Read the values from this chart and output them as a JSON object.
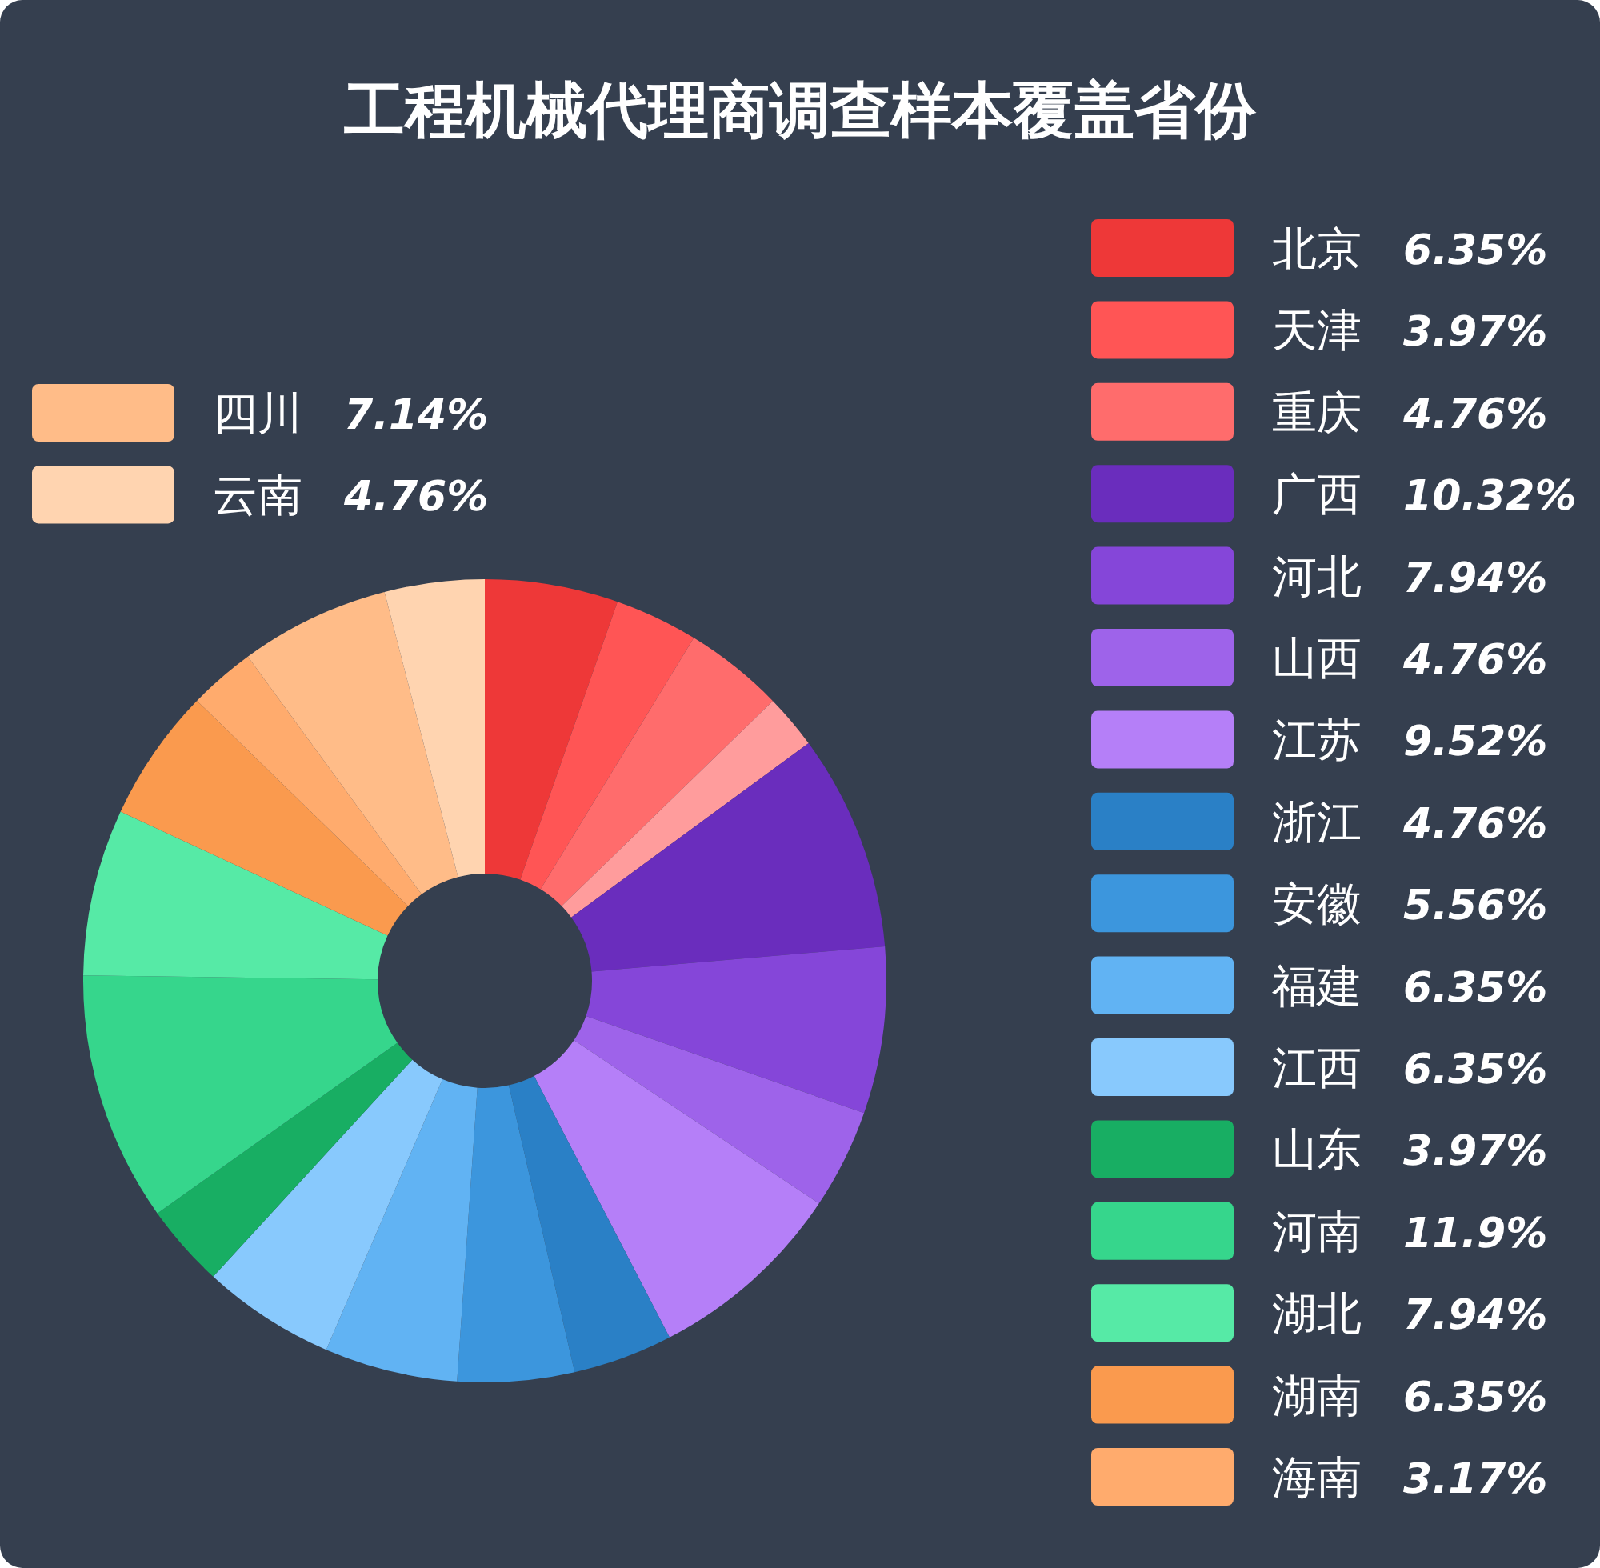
{
  "chart_data": {
    "type": "donut",
    "title": "工程机械代理商调查样本覆盖省份",
    "categories": [
      "北京",
      "天津",
      "重庆",
      null,
      "广西",
      "河北",
      "山西",
      "江苏",
      "浙江",
      "安徽",
      "福建",
      "江西",
      "山东",
      "河南",
      "湖北",
      "湖南",
      "海南",
      "四川",
      "云南"
    ],
    "values": [
      6.35,
      3.97,
      4.76,
      2.6,
      10.32,
      7.94,
      4.76,
      9.52,
      4.76,
      5.56,
      6.35,
      6.35,
      3.97,
      11.9,
      7.94,
      6.35,
      3.17,
      7.14,
      4.76
    ],
    "value_labels": [
      "6.35%",
      "3.97%",
      "4.76%",
      null,
      "10.32%",
      "7.94%",
      "4.76%",
      "9.52%",
      "4.76%",
      "5.56%",
      "6.35%",
      "6.35%",
      "3.97%",
      "11.9%",
      "7.94%",
      "6.35%",
      "3.17%",
      "7.14%",
      "4.76%"
    ],
    "colors": [
      "#ee3838",
      "#ff5555",
      "#ff6c6c",
      "#ff9c9c",
      "#6a2dbd",
      "#8546d9",
      "#9e63ea",
      "#b57ff8",
      "#2a80c6",
      "#3c96dd",
      "#61b3f3",
      "#88c9fd",
      "#18ae63",
      "#36d68c",
      "#56eaa6",
      "#fa9a4e",
      "#ffab6d",
      "#ffbc88",
      "#ffd4b0"
    ],
    "legend": "right"
  }
}
